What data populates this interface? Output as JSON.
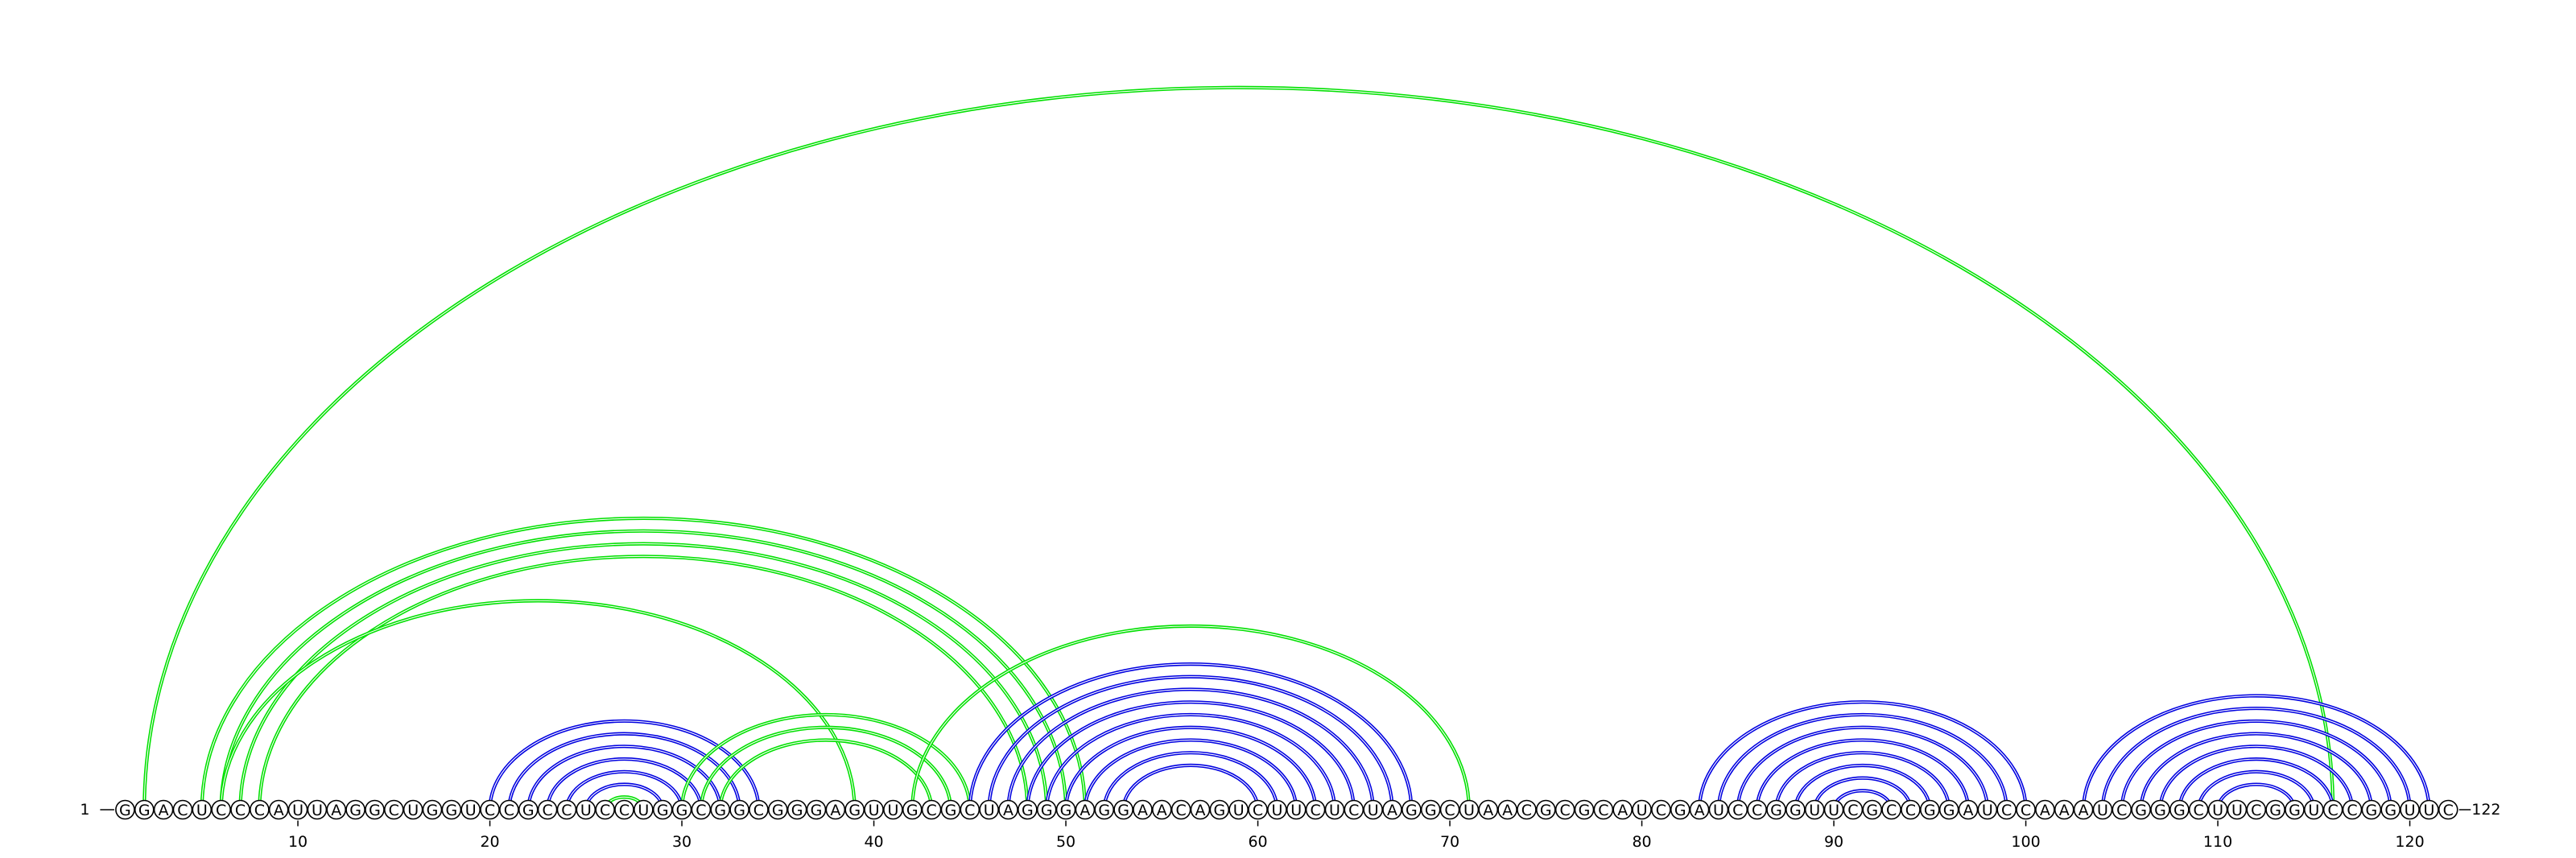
{
  "sequence": "GGACUCCCAUUAGGCUGGUCCGCCUCCUGGCGGCGGGAGUUGCGCUAGGGAGGAACAGUCUUCUCUAGGCUAACGCGCAUCGAUCCGGUUCGCCGGAUCCAAAUCGGGCUUCGGUCCGGUUC",
  "start_label": "1",
  "end_label": "122",
  "ticks": [
    10,
    20,
    30,
    40,
    50,
    60,
    70,
    80,
    90,
    100,
    110,
    120
  ],
  "colors": {
    "blue": "#0000e0",
    "green": "#00e000"
  },
  "stems": [
    {
      "color": "green",
      "pairs": [
        [
          2,
          116
        ]
      ]
    },
    {
      "color": "green",
      "pairs": [
        [
          5,
          51
        ],
        [
          6,
          50
        ],
        [
          7,
          49
        ],
        [
          8,
          48
        ]
      ]
    },
    {
      "color": "green",
      "pairs": [
        [
          6,
          39
        ]
      ]
    },
    {
      "color": "blue",
      "pairs": [
        [
          20,
          34
        ],
        [
          21,
          33
        ],
        [
          22,
          32
        ],
        [
          23,
          31
        ],
        [
          24,
          30
        ],
        [
          25,
          29
        ]
      ]
    },
    {
      "color": "green",
      "pairs": [
        [
          26,
          28
        ]
      ]
    },
    {
      "color": "green",
      "pairs": [
        [
          30,
          45
        ],
        [
          31,
          44
        ],
        [
          32,
          43
        ]
      ]
    },
    {
      "color": "green",
      "pairs": [
        [
          42,
          71
        ]
      ]
    },
    {
      "color": "blue",
      "pairs": [
        [
          45,
          68
        ],
        [
          46,
          67
        ],
        [
          47,
          66
        ],
        [
          48,
          65
        ],
        [
          49,
          64
        ],
        [
          50,
          63
        ],
        [
          51,
          62
        ],
        [
          52,
          61
        ],
        [
          53,
          60
        ]
      ]
    },
    {
      "color": "blue",
      "pairs": [
        [
          83,
          100
        ],
        [
          84,
          99
        ],
        [
          85,
          98
        ],
        [
          86,
          97
        ],
        [
          87,
          96
        ],
        [
          88,
          95
        ],
        [
          89,
          94
        ],
        [
          90,
          93
        ]
      ]
    },
    {
      "color": "blue",
      "pairs": [
        [
          103,
          121
        ],
        [
          104,
          120
        ],
        [
          105,
          119
        ],
        [
          106,
          118
        ],
        [
          107,
          117
        ],
        [
          108,
          116
        ],
        [
          109,
          115
        ],
        [
          110,
          114
        ]
      ]
    }
  ]
}
